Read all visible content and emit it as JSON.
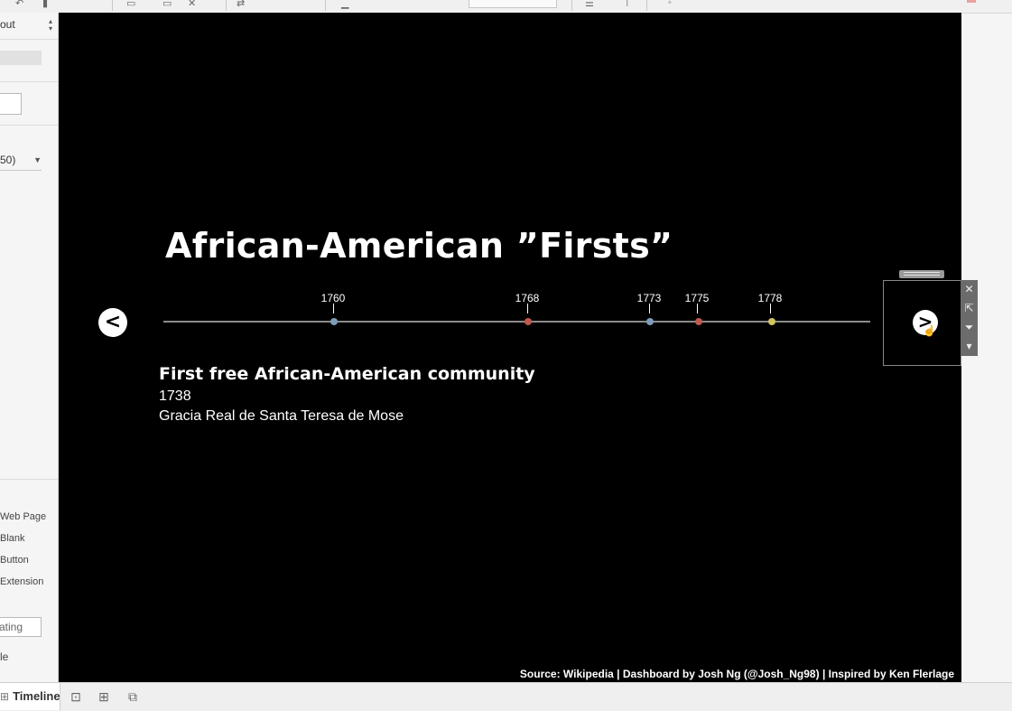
{
  "sidebar": {
    "layout_label": "out",
    "fit_value": "50)",
    "objects": [
      {
        "label": "Web Page"
      },
      {
        "label": "Blank"
      },
      {
        "label": "Button"
      },
      {
        "label": "Extension"
      }
    ],
    "floating_label": "ating",
    "title_label": "le"
  },
  "dashboard": {
    "title": "African-American ”Firsts”",
    "prev_button": "<",
    "next_button": ">",
    "timeline": [
      {
        "year": "1760",
        "color": "#7d9cbb"
      },
      {
        "year": "1768",
        "color": "#c0584c"
      },
      {
        "year": "1773",
        "color": "#7d9cbb"
      },
      {
        "year": "1775",
        "color": "#c0584c"
      },
      {
        "year": "1778",
        "color": "#cfc45e"
      }
    ],
    "event": {
      "title": "First free African-American community",
      "year": "1738",
      "place": "Gracia Real de Santa Teresa de Mose"
    },
    "source": "Source: Wikipedia | Dashboard by Josh Ng (@Josh_Ng98) | Inspired by Ken Flerlage"
  },
  "tabs": {
    "active": "Timeline"
  }
}
